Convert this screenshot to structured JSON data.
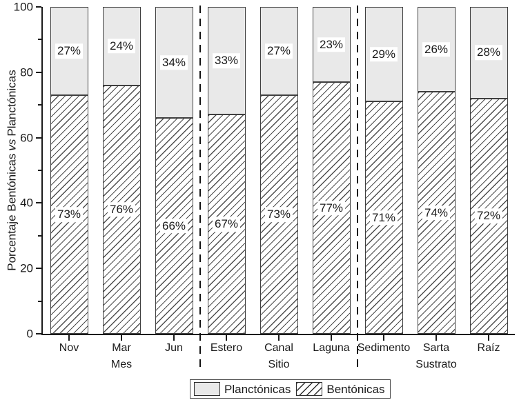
{
  "chart_data": {
    "type": "bar",
    "stacked": true,
    "orientation": "vertical",
    "ylabel": "Porcentaje Bentónicas vs Planctónicas",
    "ylabel_parts": {
      "prefix": "Porcentaje Bentónicas",
      "vs": "vs",
      "suffix": "Planctónicas"
    },
    "ylim": [
      0,
      100
    ],
    "y_major_ticks": [
      0,
      20,
      40,
      60,
      80,
      100
    ],
    "y_minor_ticks": [
      10,
      30,
      50,
      70,
      90
    ],
    "categories": [
      "Nov",
      "Mar",
      "Jun",
      "Estero",
      "Canal",
      "Laguna",
      "Sedimento",
      "Sarta",
      "Raíz"
    ],
    "groups": [
      {
        "label": "Mes",
        "span": [
          0,
          2
        ]
      },
      {
        "label": "Sitio",
        "span": [
          3,
          5
        ]
      },
      {
        "label": "Sustrato",
        "span": [
          6,
          8
        ]
      }
    ],
    "separators_after_index": [
      2,
      5
    ],
    "series": [
      {
        "name": "Bentónicas",
        "style": "hatched",
        "values": [
          73,
          76,
          66,
          67,
          73,
          77,
          71,
          74,
          72
        ]
      },
      {
        "name": "Planctónicas",
        "style": "solid",
        "values": [
          27,
          24,
          34,
          33,
          27,
          23,
          29,
          26,
          28
        ]
      }
    ],
    "bar_label_suffix": "%",
    "legend": {
      "position": "bottom",
      "entries": [
        {
          "label": "Planctónicas",
          "style": "solid"
        },
        {
          "label": "Bentónicas",
          "style": "hatched"
        }
      ]
    }
  },
  "colors": {
    "planctonicas_fill": "#e9e9e9",
    "bentonicas_hatch": "#4d4d4d",
    "bar_border": "#3f3f3f",
    "axis": "#1a1a1a",
    "text": "#1a1a1a",
    "label_background": "#ffffff"
  }
}
